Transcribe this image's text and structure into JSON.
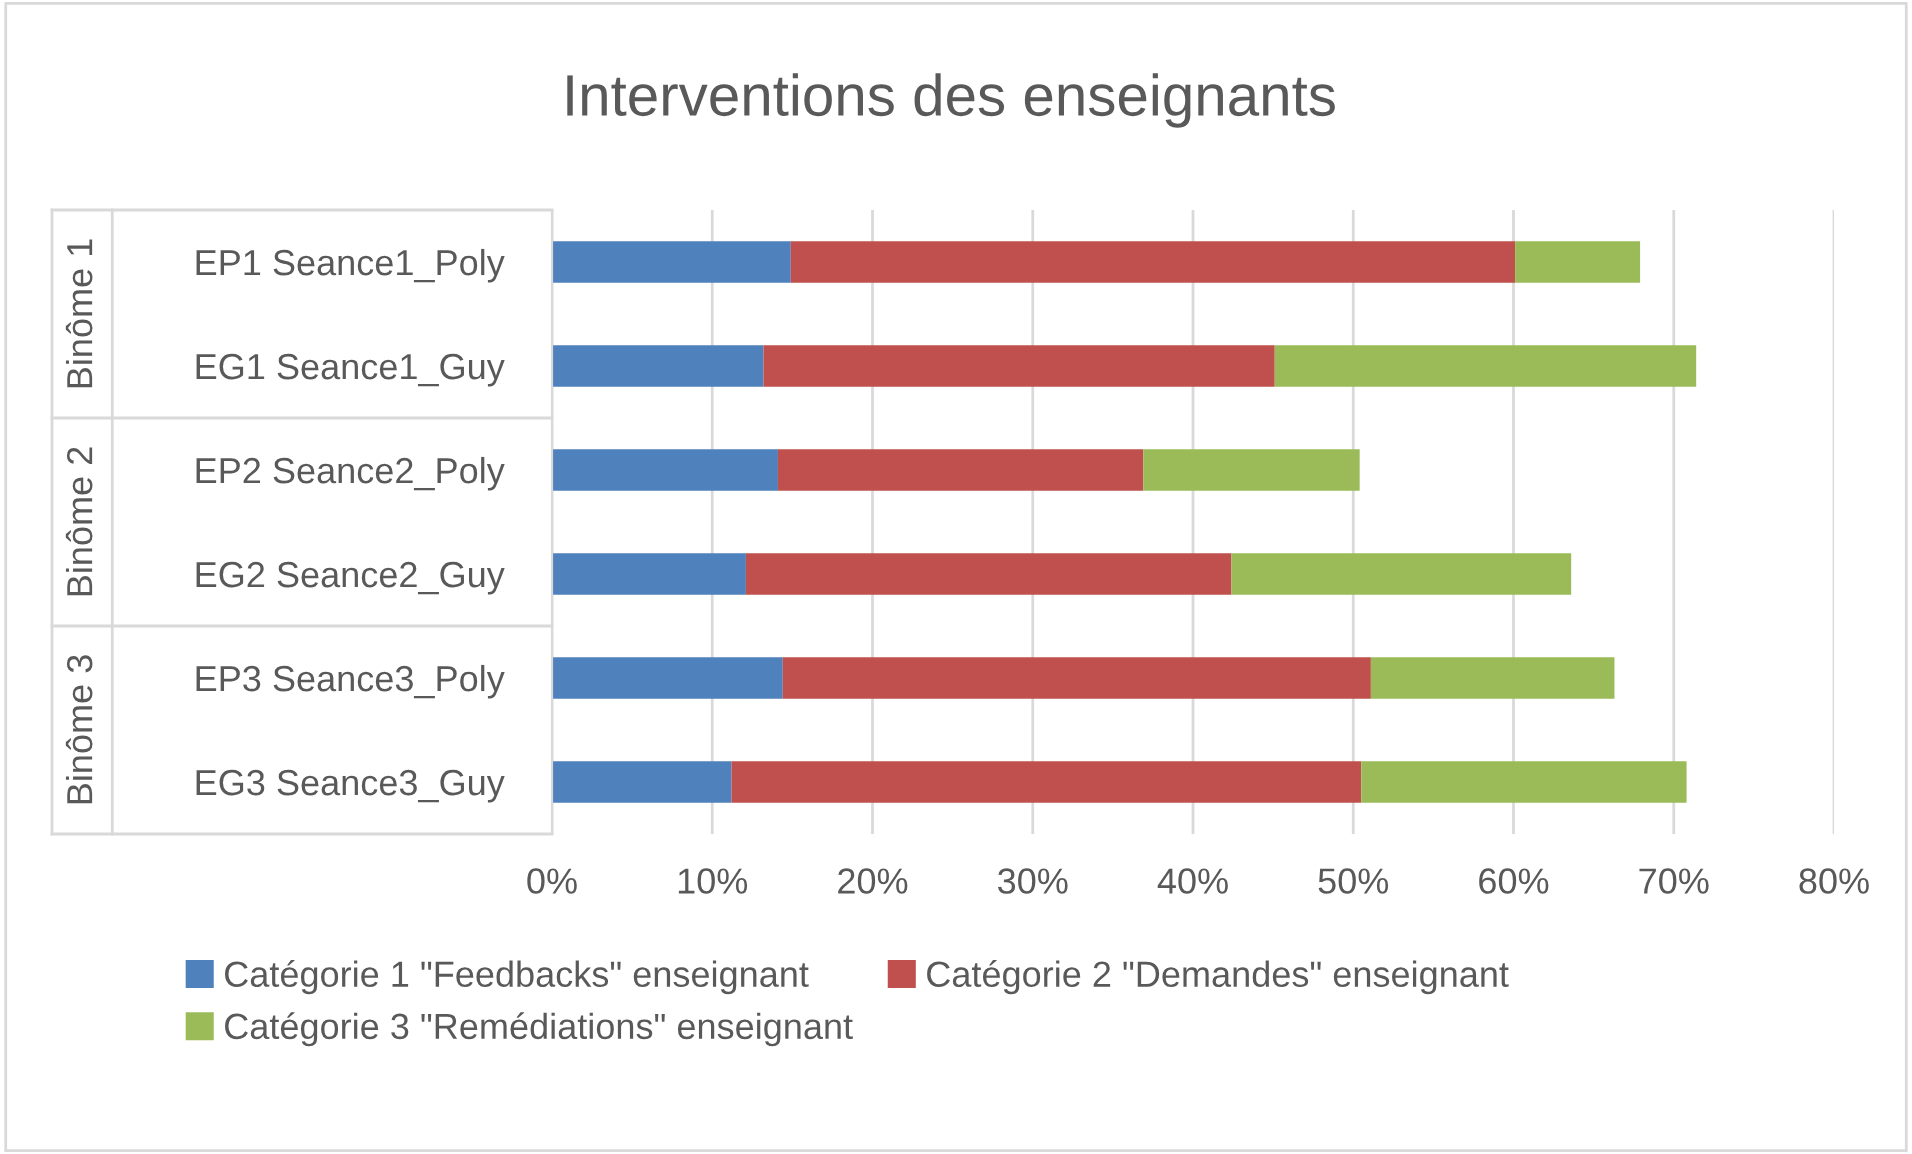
{
  "chart_data": {
    "type": "bar",
    "orientation": "horizontal",
    "stacked": true,
    "title": "Interventions des enseignants",
    "categories": [
      "EP1 Seance1_Poly",
      "EG1 Seance1_Guy",
      "EP2 Seance2_Poly",
      "EG2 Seance2_Guy",
      "EP3 Seance3_Poly",
      "EG3 Seance3_Guy"
    ],
    "series": [
      {
        "name": "Catégorie 1 \"Feedbacks\" enseignant",
        "color": "#4f81bd",
        "values": [
          14.9,
          13.2,
          14.1,
          12.1,
          14.4,
          11.2
        ]
      },
      {
        "name": "Catégorie 2 \"Demandes\" enseignant",
        "color": "#c0504d",
        "values": [
          45.2,
          31.9,
          22.8,
          30.3,
          36.7,
          39.3
        ]
      },
      {
        "name": "Catégorie 3 \"Remédiations\" enseignant",
        "color": "#9bbb59",
        "values": [
          7.8,
          26.3,
          13.5,
          21.2,
          15.2,
          20.3
        ]
      }
    ],
    "annotations": [
      "Binôme 1",
      "Binôme 2",
      "Binôme 3"
    ],
    "xlim": [
      0,
      80
    ],
    "xticks": [
      {
        "value": 0,
        "label": "0%"
      },
      {
        "value": 10,
        "label": "10%"
      },
      {
        "value": 20,
        "label": "20%"
      },
      {
        "value": 30,
        "label": "30%"
      },
      {
        "value": 40,
        "label": "40%"
      },
      {
        "value": 50,
        "label": "50%"
      },
      {
        "value": 60,
        "label": "60%"
      },
      {
        "value": 70,
        "label": "70%"
      },
      {
        "value": 80,
        "label": "80%"
      }
    ],
    "grid": "x",
    "legend": "bottom"
  }
}
